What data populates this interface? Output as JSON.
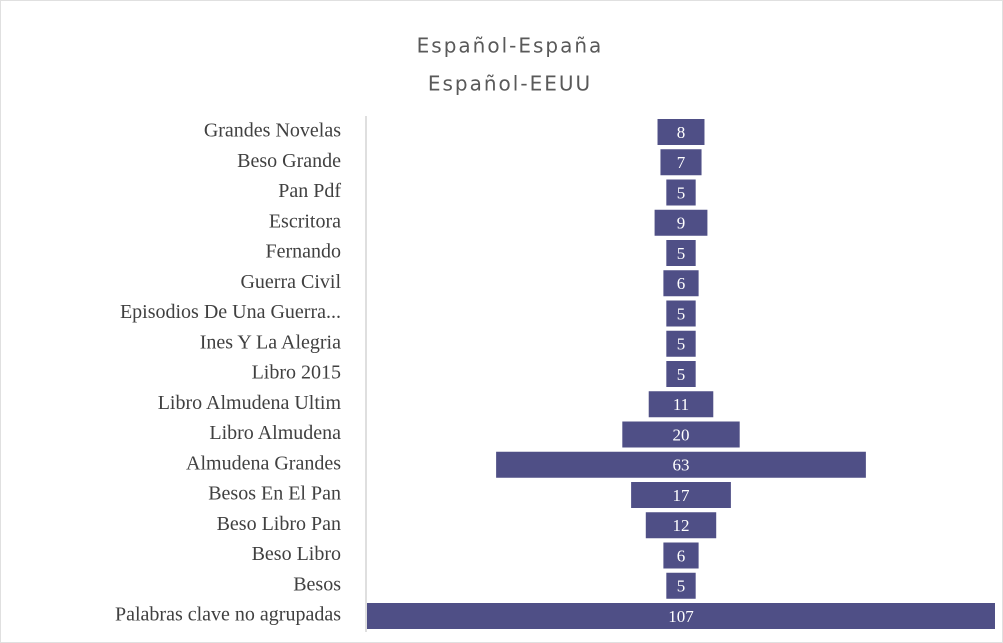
{
  "chart_data": {
    "type": "funnel",
    "title": "Español-España",
    "subtitle": "Español-EEUU",
    "categories": [
      "Grandes Novelas",
      "Beso Grande",
      "Pan Pdf",
      "Escritora",
      "Fernando",
      "Guerra Civil",
      "Episodios De Una Guerra...",
      "Ines Y La Alegria",
      "Libro 2015",
      "Libro Almudena Ultim",
      "Libro Almudena",
      "Almudena Grandes",
      "Besos En El Pan",
      "Beso Libro Pan",
      "Beso Libro",
      "Besos",
      "Palabras clave no agrupadas"
    ],
    "values": [
      8,
      7,
      5,
      9,
      5,
      6,
      5,
      5,
      5,
      11,
      20,
      63,
      17,
      12,
      6,
      5,
      107
    ],
    "color": "#4f4f86"
  }
}
